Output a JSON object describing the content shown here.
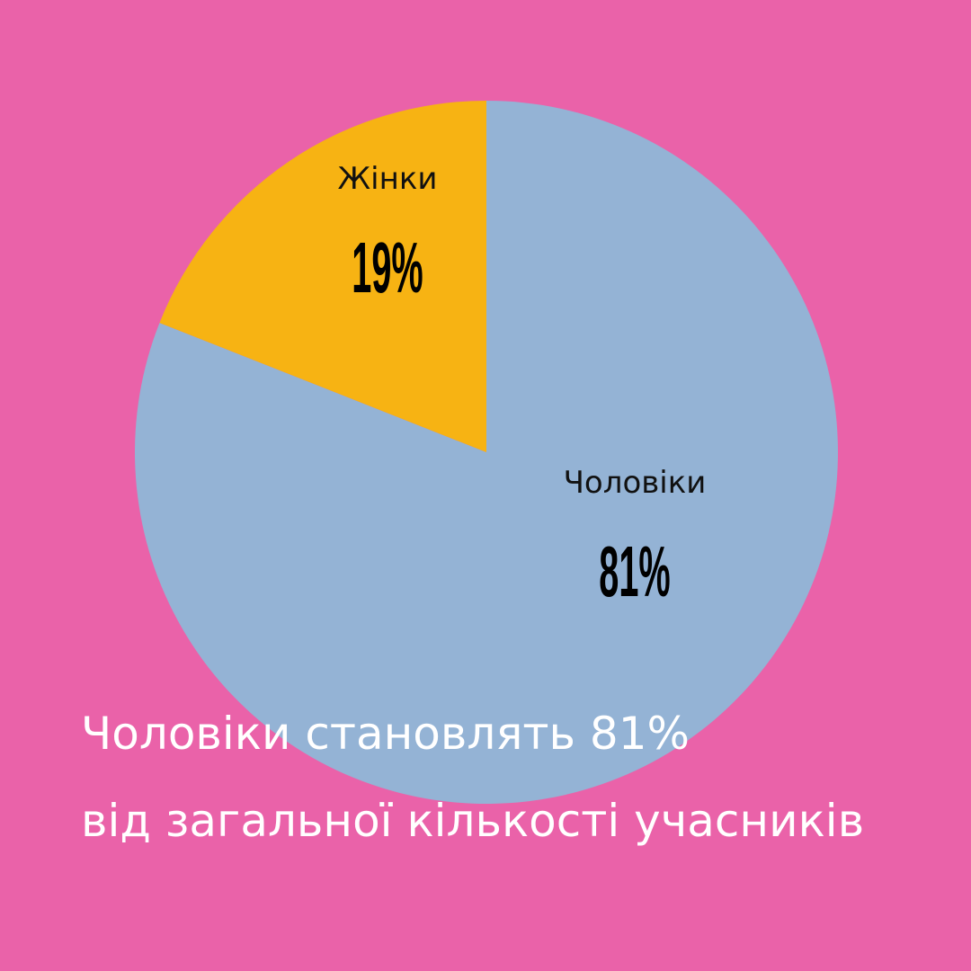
{
  "chart_data": {
    "type": "pie",
    "categories": [
      "Чоловіки",
      "Жінки"
    ],
    "values": [
      81,
      19
    ],
    "value_labels": [
      "81%",
      "19%"
    ],
    "colors": [
      "#94b3d5",
      "#f7b313"
    ],
    "caption": [
      "Чоловіки становлять 81%",
      "від загальної кількості учасників"
    ]
  }
}
